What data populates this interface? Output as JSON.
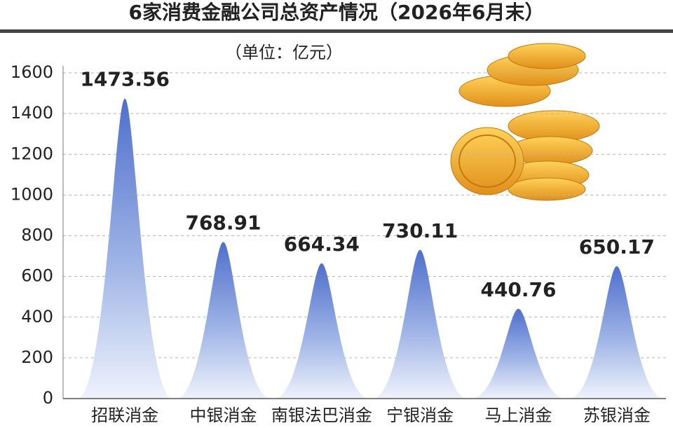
{
  "chart_data": {
    "type": "bar",
    "title": "6家消费金融公司总资产情况（2026年6月末）",
    "subtitle": "（单位：亿元）",
    "categories": [
      "招联消金",
      "中银消金",
      "南银法巴消金",
      "宁银消金",
      "马上消金",
      "苏银消金"
    ],
    "values": [
      1473.56,
      768.91,
      664.34,
      730.11,
      440.76,
      650.17
    ],
    "color": "#5a78cf",
    "ylim": [
      0,
      1600
    ],
    "yticks": [
      0,
      200,
      400,
      600,
      800,
      1000,
      1200,
      1400,
      1600
    ],
    "grid": true
  }
}
